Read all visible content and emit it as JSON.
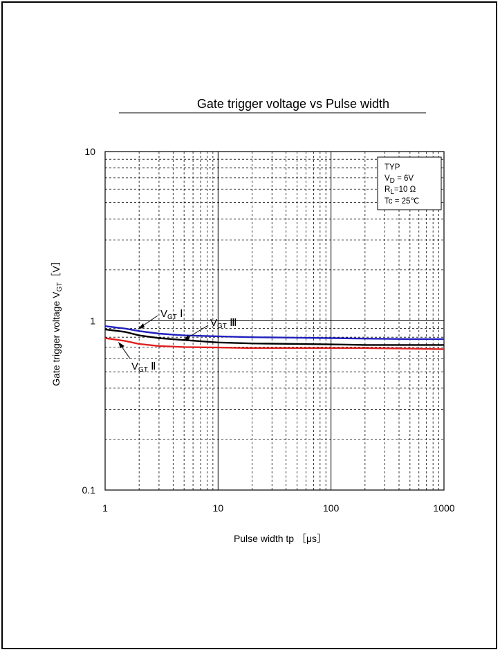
{
  "chart_data": {
    "type": "line",
    "title": "Gate trigger voltage vs Pulse width",
    "xlabel": "Pulse width  tp ［μs］",
    "ylabel": "Gate trigger voltage V",
    "ylabel_sub": "GT",
    "ylabel_unit": "［V］",
    "x_scale": "log",
    "y_scale": "log",
    "xlim": [
      1,
      1000
    ],
    "ylim": [
      0.1,
      10
    ],
    "x_ticks": [
      "1",
      "10",
      "100",
      "1000"
    ],
    "y_ticks": [
      "0.1",
      "1",
      "10"
    ],
    "grid": true,
    "conditions": {
      "line1": "TYP",
      "line2_main": "V",
      "line2_sub": "D",
      "line2_rest": " = 6V",
      "line3_main": "R",
      "line3_sub": "L",
      "line3_rest": "=10 Ω",
      "line4": "Tc = 25℃"
    },
    "series": [
      {
        "name_main": "V",
        "name_sub": "GT",
        "name_suffix": " Ⅰ",
        "color": "#1f1fbf",
        "x": [
          1,
          1.5,
          2,
          3,
          5,
          10,
          20,
          50,
          100,
          200,
          500,
          1000
        ],
        "y": [
          0.93,
          0.9,
          0.87,
          0.84,
          0.82,
          0.81,
          0.8,
          0.795,
          0.79,
          0.785,
          0.78,
          0.78
        ]
      },
      {
        "name_main": "V",
        "name_sub": "GT",
        "name_suffix": " Ⅲ",
        "color": "#000000",
        "x": [
          1,
          1.5,
          2,
          3,
          5,
          10,
          20,
          50,
          100,
          200,
          500,
          1000
        ],
        "y": [
          0.89,
          0.86,
          0.82,
          0.79,
          0.77,
          0.745,
          0.735,
          0.73,
          0.725,
          0.72,
          0.72,
          0.72
        ]
      },
      {
        "name_main": "V",
        "name_sub": "GT",
        "name_suffix": " Ⅱ",
        "color": "#e02020",
        "x": [
          1,
          1.5,
          2,
          3,
          5,
          10,
          20,
          50,
          100,
          200,
          500,
          1000
        ],
        "y": [
          0.79,
          0.76,
          0.73,
          0.71,
          0.7,
          0.695,
          0.69,
          0.69,
          0.69,
          0.69,
          0.685,
          0.68
        ]
      }
    ]
  }
}
